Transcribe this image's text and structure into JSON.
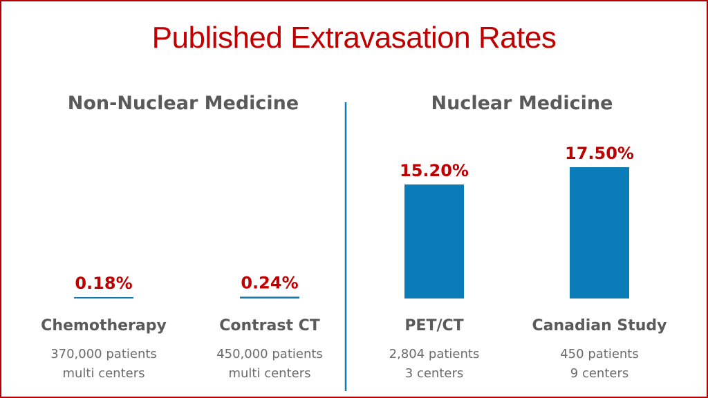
{
  "page": {
    "title": "Published Extravasation Rates"
  },
  "colors": {
    "frame": "#b30000",
    "title": "#c00000",
    "value_label": "#c00000",
    "bar": "#0a7cb8",
    "divider": "#0a7cb8",
    "heading": "#5a5a5a",
    "sublabel": "#6b6b6b"
  },
  "chart_data": [
    {
      "type": "bar",
      "title": "Non-Nuclear Medicine",
      "categories": [
        "Chemotherapy",
        "Contrast CT"
      ],
      "values": [
        0.18,
        0.24
      ],
      "value_labels": [
        "0.18%",
        "0.24%"
      ],
      "sublabels": [
        [
          "370,000 patients",
          "multi centers"
        ],
        [
          "450,000 patients",
          "multi centers"
        ]
      ],
      "ylim": [
        0,
        17.5
      ],
      "grid": false,
      "legend": "none"
    },
    {
      "type": "bar",
      "title": "Nuclear Medicine",
      "categories": [
        "PET/CT",
        "Canadian Study"
      ],
      "values": [
        15.2,
        17.5
      ],
      "value_labels": [
        "15.20%",
        "17.50%"
      ],
      "sublabels": [
        [
          "2,804 patients",
          "3 centers"
        ],
        [
          "450 patients",
          "9 centers"
        ]
      ],
      "ylim": [
        0,
        17.5
      ],
      "grid": false,
      "legend": "none"
    }
  ]
}
